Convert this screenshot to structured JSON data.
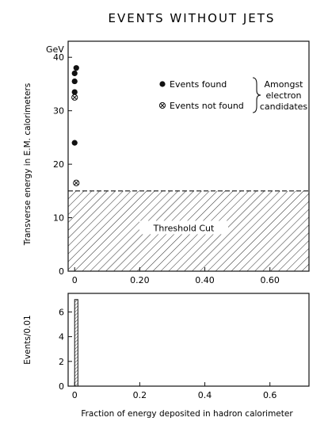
{
  "colors": {
    "ink": "#111111",
    "background": "#ffffff"
  },
  "chart_data": [
    {
      "type": "scatter",
      "title": "EVENTS  WITHOUT  JETS",
      "ylabel": "Transverse energy in E.M. calorimeters",
      "yunit": "GeV",
      "xlim": [
        -0.02,
        0.72
      ],
      "ylim": [
        0,
        43
      ],
      "xticks": [
        0,
        0.2,
        0.4,
        0.6
      ],
      "xtick_labels": [
        "0",
        "0.20",
        "0.40",
        "0.60"
      ],
      "yticks": [
        0,
        10,
        20,
        30,
        40
      ],
      "ytick_labels": [
        "0",
        "10",
        "20",
        "30",
        "40"
      ],
      "series": [
        {
          "name": "Events found",
          "marker": "filled-circle",
          "points": [
            {
              "x": 0.0,
              "y": 24.0
            },
            {
              "x": 0.0,
              "y": 33.5
            },
            {
              "x": 0.0,
              "y": 35.5
            },
            {
              "x": 0.0,
              "y": 37.0
            },
            {
              "x": 0.005,
              "y": 38.0
            }
          ]
        },
        {
          "name": "Events not found",
          "marker": "circled-cross",
          "points": [
            {
              "x": 0.0,
              "y": 32.5
            },
            {
              "x": 0.005,
              "y": 16.5
            }
          ]
        }
      ],
      "legend_group_label": [
        "Amongst",
        "electron",
        "candidates"
      ],
      "shaded_region": {
        "label": "Threshold  Cut",
        "y_from": 0,
        "y_to": 15
      }
    },
    {
      "type": "bar",
      "ylabel": "Events/0.01",
      "xlabel": "Fraction of energy deposited in hadron calorimeter",
      "xlim": [
        -0.02,
        0.72
      ],
      "ylim": [
        0,
        7.5
      ],
      "xticks": [
        0,
        0.2,
        0.4,
        0.6
      ],
      "xtick_labels": [
        "0",
        "0.2",
        "0.4",
        "0.6"
      ],
      "yticks": [
        0,
        2,
        4,
        6
      ],
      "ytick_labels": [
        "0",
        "2",
        "4",
        "6"
      ],
      "bins": [
        {
          "x_from": 0.0,
          "x_to": 0.01,
          "value": 7
        }
      ]
    }
  ]
}
